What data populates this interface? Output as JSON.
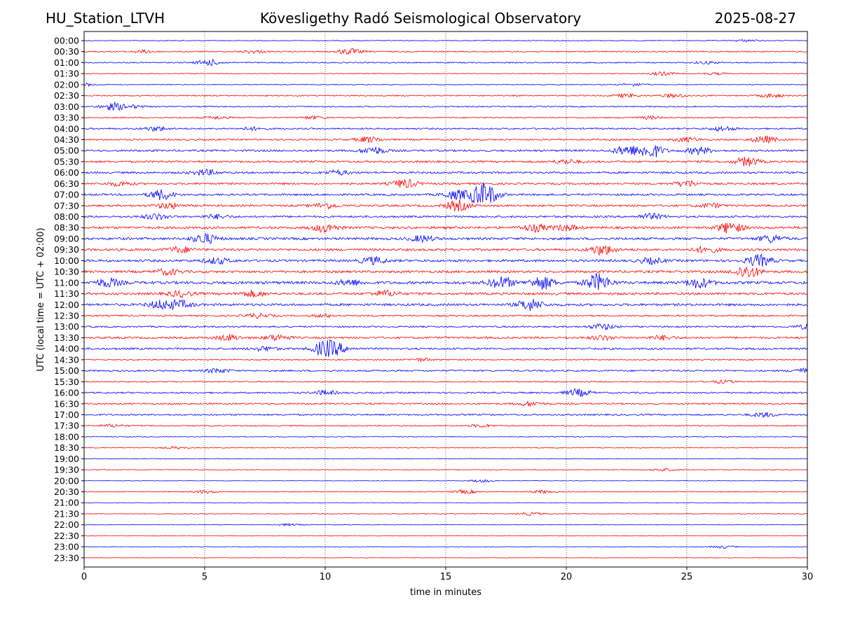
{
  "header": {
    "station": "HU_Station_LTVH",
    "observatory": "Kövesligethy Radó Seismological Observatory",
    "date": "2025-08-27"
  },
  "chart_data": {
    "type": "line",
    "title": "Kövesligethy Radó Seismological Observatory",
    "xlabel": "time in minutes",
    "ylabel": "UTC (local time = UTC + 02:00)",
    "xlim": [
      0,
      30
    ],
    "xticks": [
      0,
      5,
      10,
      15,
      20,
      25,
      30
    ],
    "vertical_gridlines_at": [
      5,
      10,
      15,
      20,
      25
    ],
    "grid": "vertical dotted",
    "series_colors": [
      "#0000ff",
      "#ff0000"
    ],
    "rows": [
      {
        "label": "00:00",
        "amp": 1,
        "bursts": [
          [
            27.5,
            1.5
          ]
        ]
      },
      {
        "label": "00:30",
        "amp": 1.5,
        "bursts": [
          [
            2.5,
            2
          ],
          [
            7,
            2
          ],
          [
            11,
            4
          ]
        ]
      },
      {
        "label": "01:00",
        "amp": 1.5,
        "bursts": [
          [
            5.2,
            4
          ],
          [
            25.8,
            1.5
          ]
        ]
      },
      {
        "label": "01:30",
        "amp": 1,
        "bursts": [
          [
            24,
            2.5
          ],
          [
            26.2,
            1.5
          ]
        ]
      },
      {
        "label": "02:00",
        "amp": 1,
        "bursts": [
          [
            0.1,
            2
          ],
          [
            22.8,
            2
          ]
        ]
      },
      {
        "label": "02:30",
        "amp": 1.5,
        "bursts": [
          [
            22.5,
            2.5
          ],
          [
            24.5,
            2.5
          ],
          [
            28.5,
            2.5
          ]
        ]
      },
      {
        "label": "03:00",
        "amp": 1.5,
        "bursts": [
          [
            1.2,
            5
          ],
          [
            2,
            2
          ]
        ]
      },
      {
        "label": "03:30",
        "amp": 1.5,
        "bursts": [
          [
            5.5,
            2
          ],
          [
            9.5,
            2
          ],
          [
            23.5,
            2
          ]
        ]
      },
      {
        "label": "04:00",
        "amp": 2,
        "bursts": [
          [
            3,
            3
          ],
          [
            7,
            2
          ],
          [
            26.5,
            3
          ]
        ]
      },
      {
        "label": "04:30",
        "amp": 2,
        "bursts": [
          [
            11.8,
            4
          ],
          [
            25,
            3
          ],
          [
            28.2,
            5
          ]
        ]
      },
      {
        "label": "05:00",
        "amp": 2.5,
        "bursts": [
          [
            12,
            5
          ],
          [
            22.5,
            7
          ],
          [
            23.5,
            10
          ],
          [
            25.5,
            5
          ]
        ]
      },
      {
        "label": "05:30",
        "amp": 2.5,
        "bursts": [
          [
            20,
            3
          ],
          [
            27.5,
            6
          ]
        ]
      },
      {
        "label": "06:00",
        "amp": 2.5,
        "bursts": [
          [
            5,
            4
          ],
          [
            10.5,
            3
          ]
        ]
      },
      {
        "label": "06:30",
        "amp": 2.5,
        "bursts": [
          [
            1.5,
            3
          ],
          [
            13.3,
            6
          ],
          [
            25,
            4
          ]
        ]
      },
      {
        "label": "07:00",
        "amp": 2.5,
        "bursts": [
          [
            3.2,
            7
          ],
          [
            16.4,
            11
          ],
          [
            16.8,
            8
          ],
          [
            15.4,
            6
          ]
        ]
      },
      {
        "label": "07:30",
        "amp": 2.5,
        "bursts": [
          [
            3.5,
            4
          ],
          [
            10,
            4
          ],
          [
            15.5,
            7
          ],
          [
            26,
            3
          ]
        ]
      },
      {
        "label": "08:00",
        "amp": 2.5,
        "bursts": [
          [
            3,
            4
          ],
          [
            5.5,
            3
          ],
          [
            23.5,
            4
          ]
        ]
      },
      {
        "label": "08:30",
        "amp": 3,
        "bursts": [
          [
            10,
            6
          ],
          [
            18.7,
            5
          ],
          [
            20,
            4
          ],
          [
            26.8,
            8
          ]
        ]
      },
      {
        "label": "09:00",
        "amp": 3,
        "bursts": [
          [
            5,
            7
          ],
          [
            14,
            4
          ],
          [
            28.5,
            5
          ]
        ]
      },
      {
        "label": "09:30",
        "amp": 3,
        "bursts": [
          [
            4,
            4
          ],
          [
            21.5,
            7
          ],
          [
            25.8,
            4
          ]
        ]
      },
      {
        "label": "10:00",
        "amp": 3,
        "bursts": [
          [
            5.5,
            4
          ],
          [
            12,
            5
          ],
          [
            23.5,
            4
          ],
          [
            28,
            8
          ]
        ]
      },
      {
        "label": "10:30",
        "amp": 3,
        "bursts": [
          [
            3.5,
            4
          ],
          [
            27.5,
            9
          ]
        ]
      },
      {
        "label": "11:00",
        "amp": 3.5,
        "bursts": [
          [
            1,
            6
          ],
          [
            11,
            4
          ],
          [
            17.3,
            8
          ],
          [
            19,
            9
          ],
          [
            21.3,
            12
          ],
          [
            25.5,
            7
          ]
        ]
      },
      {
        "label": "11:30",
        "amp": 3,
        "bursts": [
          [
            4,
            4
          ],
          [
            7,
            4
          ],
          [
            12.5,
            4
          ]
        ]
      },
      {
        "label": "12:00",
        "amp": 3,
        "bursts": [
          [
            3.2,
            6
          ],
          [
            4,
            5
          ],
          [
            18.5,
            8
          ]
        ]
      },
      {
        "label": "12:30",
        "amp": 2,
        "bursts": [
          [
            7.2,
            3
          ],
          [
            10,
            2
          ]
        ]
      },
      {
        "label": "13:00",
        "amp": 2,
        "bursts": [
          [
            21.5,
            4
          ],
          [
            30,
            3
          ]
        ]
      },
      {
        "label": "13:30",
        "amp": 2.5,
        "bursts": [
          [
            6,
            4
          ],
          [
            8,
            4
          ],
          [
            21.5,
            3
          ],
          [
            24,
            3
          ]
        ]
      },
      {
        "label": "14:00",
        "amp": 2.5,
        "bursts": [
          [
            10,
            10
          ],
          [
            7.5,
            3
          ],
          [
            10.5,
            5
          ]
        ]
      },
      {
        "label": "14:30",
        "amp": 1.5,
        "bursts": [
          [
            14,
            2
          ]
        ]
      },
      {
        "label": "15:00",
        "amp": 2,
        "bursts": [
          [
            5.5,
            3
          ],
          [
            29.8,
            3
          ]
        ]
      },
      {
        "label": "15:30",
        "amp": 1.5,
        "bursts": [
          [
            26.5,
            2
          ]
        ]
      },
      {
        "label": "16:00",
        "amp": 2,
        "bursts": [
          [
            10,
            3
          ],
          [
            20.5,
            5
          ]
        ]
      },
      {
        "label": "16:30",
        "amp": 2,
        "bursts": [
          [
            18.5,
            3
          ]
        ]
      },
      {
        "label": "17:00",
        "amp": 2,
        "bursts": [
          [
            28.2,
            3
          ]
        ]
      },
      {
        "label": "17:30",
        "amp": 1.5,
        "bursts": [
          [
            1.2,
            2
          ],
          [
            16.5,
            2
          ]
        ]
      },
      {
        "label": "18:00",
        "amp": 1,
        "bursts": []
      },
      {
        "label": "18:30",
        "amp": 1,
        "bursts": [
          [
            3.8,
            1.5
          ]
        ]
      },
      {
        "label": "19:00",
        "amp": 0.8,
        "bursts": []
      },
      {
        "label": "19:30",
        "amp": 1,
        "bursts": [
          [
            24,
            2
          ]
        ]
      },
      {
        "label": "20:00",
        "amp": 0.6,
        "bursts": [
          [
            16.5,
            2
          ]
        ]
      },
      {
        "label": "20:30",
        "amp": 1,
        "bursts": [
          [
            5,
            2
          ],
          [
            15.8,
            2.5
          ],
          [
            19,
            2
          ]
        ]
      },
      {
        "label": "21:00",
        "amp": 0.6,
        "bursts": []
      },
      {
        "label": "21:30",
        "amp": 1,
        "bursts": [
          [
            18.5,
            2
          ]
        ]
      },
      {
        "label": "22:00",
        "amp": 0.6,
        "bursts": [
          [
            8.5,
            1.5
          ]
        ]
      },
      {
        "label": "22:30",
        "amp": 0.8,
        "bursts": []
      },
      {
        "label": "23:00",
        "amp": 0.6,
        "bursts": [
          [
            26.5,
            2
          ]
        ]
      },
      {
        "label": "23:30",
        "amp": 0.6,
        "bursts": []
      }
    ]
  }
}
